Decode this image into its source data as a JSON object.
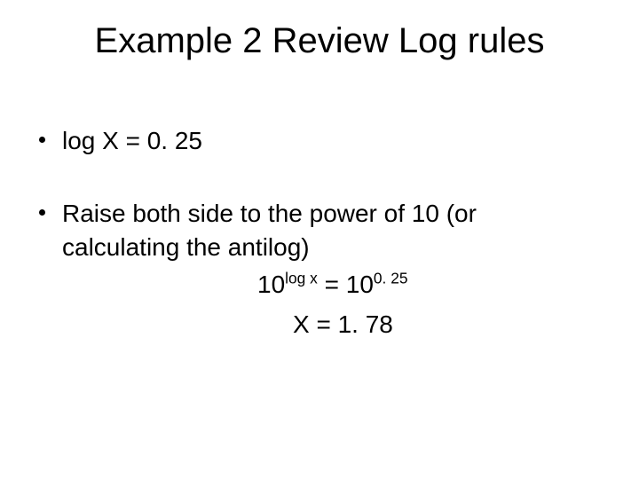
{
  "title": "Example 2  Review Log rules",
  "bullets": {
    "b1": "log X = 0. 25",
    "b2": "Raise both side to the power of 10 (or calculating the antilog)"
  },
  "eq": {
    "base1": "10",
    "sup1": "log x",
    "eqsign": " = ",
    "base2": "10",
    "sup2": "0. 25",
    "line2": "X = 1. 78"
  },
  "style": {
    "bg": "#ffffff",
    "text_color": "#000000",
    "title_fontsize": 40,
    "body_fontsize": 28,
    "font_family": "Arial"
  }
}
